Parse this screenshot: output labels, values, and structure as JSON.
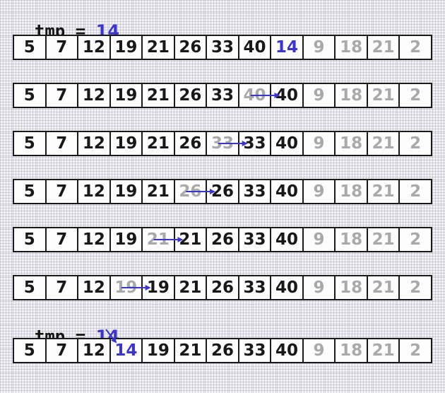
{
  "tmp": {
    "label": "tmp",
    "equals": "=",
    "value": "14"
  },
  "rows": [
    {
      "cells": [
        "5",
        "7",
        "12",
        "19",
        "21",
        "26",
        "33",
        "40",
        "14",
        "9",
        "18",
        "21",
        "2"
      ]
    },
    {
      "cells": [
        "5",
        "7",
        "12",
        "19",
        "21",
        "26",
        "33",
        "40",
        "40",
        "9",
        "18",
        "21",
        "2"
      ]
    },
    {
      "cells": [
        "5",
        "7",
        "12",
        "19",
        "21",
        "26",
        "33",
        "33",
        "40",
        "9",
        "18",
        "21",
        "2"
      ]
    },
    {
      "cells": [
        "5",
        "7",
        "12",
        "19",
        "21",
        "26",
        "26",
        "33",
        "40",
        "9",
        "18",
        "21",
        "2"
      ]
    },
    {
      "cells": [
        "5",
        "7",
        "12",
        "19",
        "21",
        "21",
        "26",
        "33",
        "40",
        "9",
        "18",
        "21",
        "2"
      ]
    },
    {
      "cells": [
        "5",
        "7",
        "12",
        "19",
        "19",
        "21",
        "26",
        "33",
        "40",
        "9",
        "18",
        "21",
        "2"
      ]
    },
    {
      "cells": [
        "5",
        "7",
        "12",
        "14",
        "19",
        "21",
        "26",
        "33",
        "40",
        "9",
        "18",
        "21",
        "2"
      ]
    }
  ],
  "sorted_count": 9,
  "shifts": [
    {
      "row": 1,
      "from": 7,
      "to": 8
    },
    {
      "row": 2,
      "from": 6,
      "to": 7
    },
    {
      "row": 3,
      "from": 5,
      "to": 6
    },
    {
      "row": 4,
      "from": 4,
      "to": 5
    },
    {
      "row": 5,
      "from": 3,
      "to": 4
    }
  ],
  "highlight_cells": [
    {
      "row": 0,
      "index": 8
    },
    {
      "row": 6,
      "index": 3
    }
  ],
  "insert_target": {
    "row": 6,
    "index": 3
  },
  "colors": {
    "accent": "#3b35c9",
    "text": "#181818",
    "inactive": "#a9a9a9"
  }
}
